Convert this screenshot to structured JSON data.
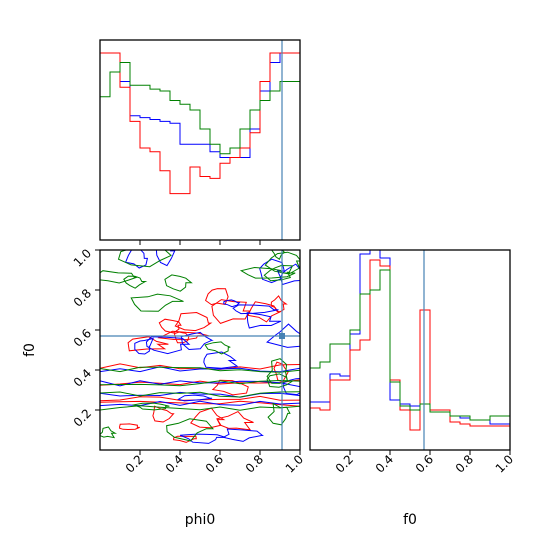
{
  "chart_data": [
    {
      "type": "histogram",
      "panel": "phi0-marginal",
      "x_range": [
        0,
        1
      ],
      "bins": 20,
      "truth": 0.91,
      "xticks": [
        0.2,
        0.4,
        0.6,
        0.8
      ],
      "series": [
        {
          "color": "#0000ff",
          "values": [
            1.0,
            1.0,
            0.85,
            0.67,
            0.66,
            0.65,
            0.64,
            0.63,
            0.52,
            0.52,
            0.52,
            0.48,
            0.45,
            0.45,
            0.45,
            0.6,
            0.8,
            0.95,
            1.0,
            1.0
          ]
        },
        {
          "color": "#ff0000",
          "values": [
            1.0,
            1.0,
            0.82,
            0.64,
            0.5,
            0.48,
            0.38,
            0.26,
            0.26,
            0.4,
            0.35,
            0.34,
            0.42,
            0.45,
            0.5,
            0.58,
            0.85,
            1.0,
            1.0,
            1.0
          ]
        },
        {
          "color": "#008000",
          "values": [
            0.77,
            0.9,
            0.95,
            0.83,
            0.83,
            0.81,
            0.8,
            0.75,
            0.73,
            0.7,
            0.6,
            0.52,
            0.47,
            0.5,
            0.6,
            0.7,
            0.75,
            0.8,
            0.85,
            0.85
          ]
        }
      ]
    },
    {
      "type": "histogram",
      "panel": "f0-marginal",
      "x_range": [
        0,
        1
      ],
      "bins": 20,
      "truth": 0.57,
      "xticks": [
        0.2,
        0.4,
        0.6,
        0.8,
        1.0
      ],
      "xlabel": "f0",
      "series": [
        {
          "color": "#0000ff",
          "values": [
            0.24,
            0.24,
            0.38,
            0.37,
            0.58,
            0.98,
            1.0,
            0.96,
            0.25,
            0.23,
            0.22,
            0.23,
            0.2,
            0.2,
            0.17,
            0.16,
            0.15,
            0.15,
            0.13,
            0.13
          ]
        },
        {
          "color": "#ff0000",
          "values": [
            0.21,
            0.2,
            0.35,
            0.35,
            0.5,
            0.55,
            0.95,
            0.92,
            0.35,
            0.2,
            0.1,
            0.7,
            0.2,
            0.2,
            0.14,
            0.13,
            0.12,
            0.12,
            0.12,
            0.12
          ]
        },
        {
          "color": "#008000",
          "values": [
            0.41,
            0.44,
            0.53,
            0.53,
            0.6,
            0.78,
            0.8,
            0.9,
            0.34,
            0.22,
            0.2,
            0.23,
            0.19,
            0.19,
            0.17,
            0.17,
            0.15,
            0.15,
            0.17,
            0.17
          ]
        }
      ]
    },
    {
      "type": "contour",
      "panel": "phi0-f0-joint",
      "x_range": [
        0,
        1
      ],
      "y_range": [
        0,
        1
      ],
      "xticks": [
        0.2,
        0.4,
        0.6,
        0.8,
        1.0
      ],
      "yticks": [
        0.2,
        0.4,
        0.6,
        0.8,
        1.0
      ],
      "xlabel": "phi0",
      "ylabel": "f0",
      "truth": [
        0.91,
        0.57
      ],
      "series": [
        {
          "color": "#ff0000"
        },
        {
          "color": "#0000ff"
        },
        {
          "color": "#008000"
        }
      ]
    }
  ],
  "colors": {
    "truth_line": "#4682b4",
    "frame": "#000000"
  }
}
